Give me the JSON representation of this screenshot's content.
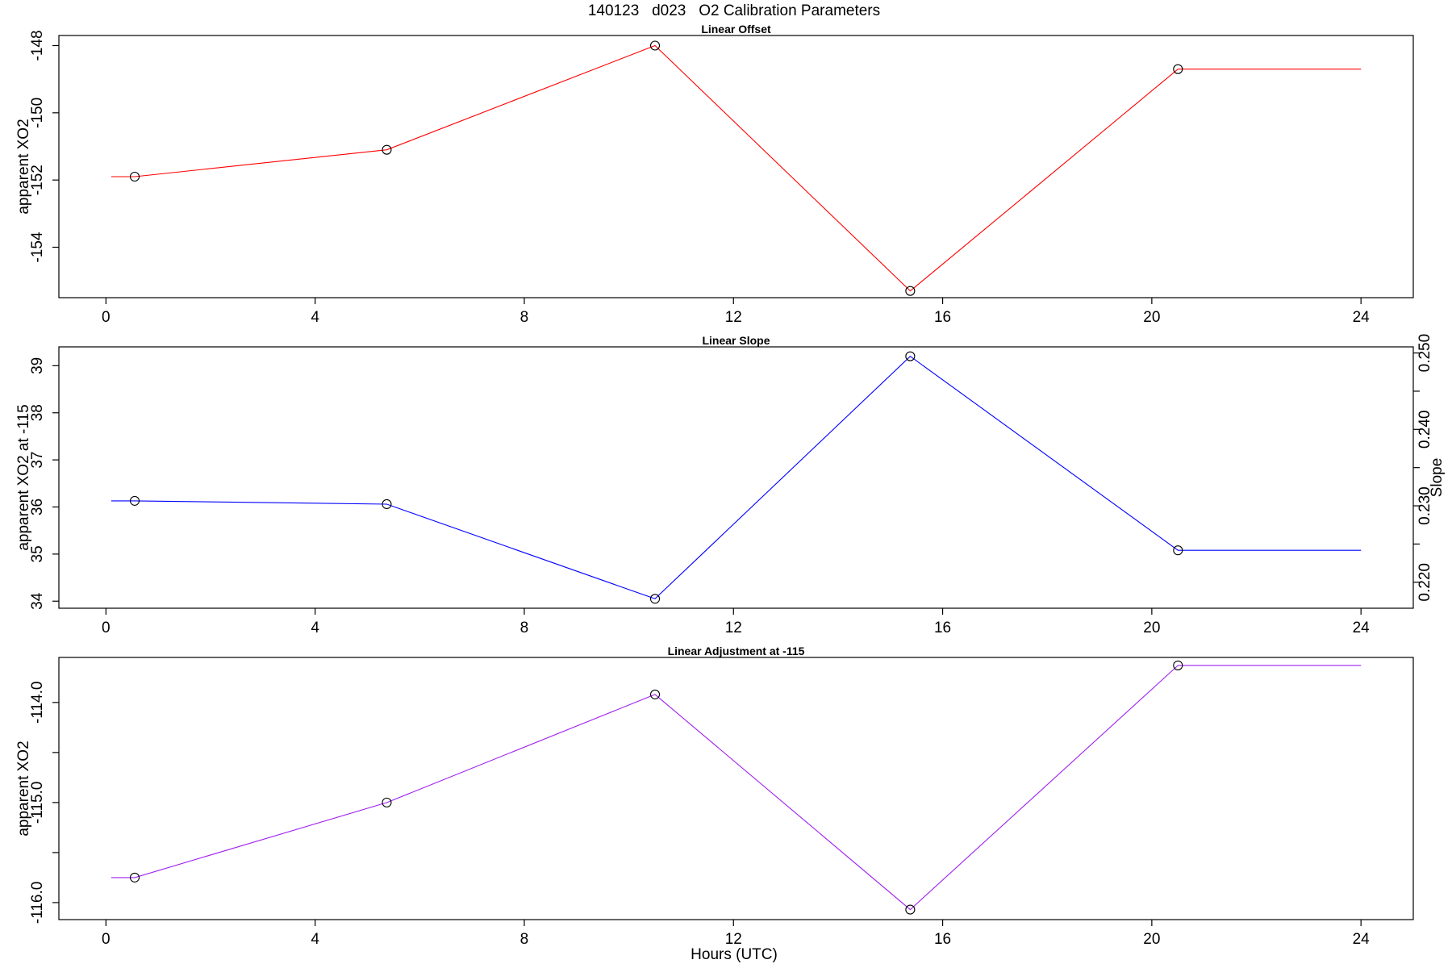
{
  "title": "140123   d023   O2 Calibration Parameters",
  "xlabel": "Hours (UTC)",
  "chart_data": [
    {
      "type": "line",
      "title": "Linear Offset",
      "xlabel": "",
      "ylabel": "apparent XO2",
      "x_ticks": [
        0,
        4,
        8,
        12,
        16,
        20,
        24
      ],
      "xlim": [
        -0.9,
        25
      ],
      "y_ticks": [
        -148,
        -150,
        -152,
        -154
      ],
      "ylim": [
        -155.5,
        -147.7
      ],
      "line_color": "#ff0000",
      "line_x": [
        0.1,
        0.55,
        5.37,
        10.5,
        15.38,
        20.5,
        24.0
      ],
      "line_y": [
        -151.9,
        -151.9,
        -151.1,
        -148.0,
        -155.3,
        -148.7,
        -148.7
      ],
      "points": [
        {
          "x": 0.55,
          "y": -151.9
        },
        {
          "x": 5.37,
          "y": -151.1
        },
        {
          "x": 10.5,
          "y": -148.0
        },
        {
          "x": 15.38,
          "y": -155.3
        },
        {
          "x": 20.5,
          "y": -148.7
        }
      ]
    },
    {
      "type": "line",
      "title": "Linear Slope",
      "xlabel": "",
      "ylabel": "apparent XO2 at -115",
      "ylabel_right": "Slope",
      "x_ticks": [
        0,
        4,
        8,
        12,
        16,
        20,
        24
      ],
      "xlim": [
        -0.9,
        25
      ],
      "y_ticks": [
        34,
        35,
        36,
        37,
        38,
        39
      ],
      "ylim": [
        33.85,
        39.4
      ],
      "y2_ticks": [
        "0.220",
        "0.230",
        "0.240",
        "0.250"
      ],
      "y2_values": [
        0.22,
        0.23,
        0.24,
        0.25
      ],
      "y2lim": [
        0.2166,
        0.2508
      ],
      "line_color": "#0000ff",
      "line_x": [
        0.1,
        0.55,
        5.37,
        10.5,
        15.38,
        20.5,
        24.0
      ],
      "line_y": [
        36.13,
        36.13,
        36.06,
        34.05,
        39.2,
        35.08,
        35.08
      ],
      "points": [
        {
          "x": 0.55,
          "y": 36.13
        },
        {
          "x": 5.37,
          "y": 36.06
        },
        {
          "x": 10.5,
          "y": 34.05
        },
        {
          "x": 15.38,
          "y": 39.2
        },
        {
          "x": 20.5,
          "y": 35.08
        }
      ]
    },
    {
      "type": "line",
      "title": "Linear Adjustment at -115",
      "xlabel": "Hours (UTC)",
      "ylabel": "apparent XO2",
      "x_ticks": [
        0,
        4,
        8,
        12,
        16,
        20,
        24
      ],
      "xlim": [
        -0.9,
        25
      ],
      "y_ticks": [
        "-114.0",
        "-115.0",
        "-116.0"
      ],
      "y_values": [
        -114.0,
        -115.0,
        -116.0
      ],
      "y_minor_ticks": [
        -114.5,
        -115.5
      ],
      "ylim": [
        -116.17,
        -113.55
      ],
      "line_color": "#a020f0",
      "line_x": [
        0.1,
        0.55,
        5.37,
        10.5,
        15.38,
        20.5,
        24.0
      ],
      "line_y": [
        -115.75,
        -115.75,
        -115.0,
        -113.92,
        -116.07,
        -113.63,
        -113.63
      ],
      "points": [
        {
          "x": 0.55,
          "y": -115.75
        },
        {
          "x": 5.37,
          "y": -115.0
        },
        {
          "x": 10.5,
          "y": -113.92
        },
        {
          "x": 15.38,
          "y": -116.07
        },
        {
          "x": 20.5,
          "y": -113.63
        }
      ]
    }
  ]
}
